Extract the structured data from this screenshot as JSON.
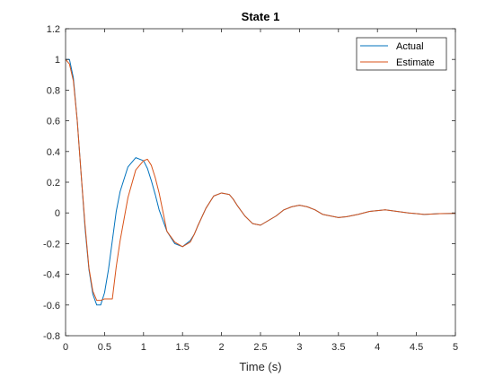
{
  "chart_data": {
    "type": "line",
    "title": "State 1",
    "xlabel": "Time (s)",
    "ylabel": "",
    "xlim": [
      0,
      5
    ],
    "ylim": [
      -0.8,
      1.2
    ],
    "xticks": [
      0,
      0.5,
      1,
      1.5,
      2,
      2.5,
      3,
      3.5,
      4,
      4.5,
      5
    ],
    "xtick_labels": [
      "0",
      "0.5",
      "1",
      "1.5",
      "2",
      "2.5",
      "3",
      "3.5",
      "4",
      "4.5",
      "5"
    ],
    "yticks": [
      -0.8,
      -0.6,
      -0.4,
      -0.2,
      0,
      0.2,
      0.4,
      0.6,
      0.8,
      1,
      1.2
    ],
    "ytick_labels": [
      "-0.8",
      "-0.6",
      "-0.4",
      "-0.2",
      "0",
      "0.2",
      "0.4",
      "0.6",
      "0.8",
      "1",
      "1.2"
    ],
    "grid": false,
    "legend": "top-right",
    "series": [
      {
        "name": "Actual",
        "color": "#0072BD",
        "x": [
          0,
          0.05,
          0.1,
          0.15,
          0.2,
          0.25,
          0.3,
          0.35,
          0.4,
          0.45,
          0.5,
          0.55,
          0.6,
          0.65,
          0.7,
          0.8,
          0.9,
          1.0,
          1.05,
          1.1,
          1.15,
          1.2,
          1.3,
          1.4,
          1.5,
          1.6,
          1.65,
          1.7,
          1.8,
          1.9,
          2.0,
          2.1,
          2.15,
          2.2,
          2.3,
          2.4,
          2.5,
          2.6,
          2.7,
          2.8,
          2.9,
          3.0,
          3.1,
          3.2,
          3.3,
          3.4,
          3.5,
          3.6,
          3.75,
          3.9,
          4.0,
          4.1,
          4.25,
          4.4,
          4.5,
          4.6,
          4.8,
          5.0
        ],
        "y": [
          1.0,
          1.0,
          0.88,
          0.6,
          0.25,
          -0.1,
          -0.37,
          -0.53,
          -0.6,
          -0.6,
          -0.52,
          -0.37,
          -0.18,
          0.01,
          0.14,
          0.3,
          0.36,
          0.34,
          0.29,
          0.21,
          0.12,
          0.02,
          -0.12,
          -0.2,
          -0.22,
          -0.18,
          -0.14,
          -0.08,
          0.03,
          0.11,
          0.13,
          0.12,
          0.09,
          0.05,
          -0.02,
          -0.07,
          -0.08,
          -0.05,
          -0.02,
          0.02,
          0.04,
          0.05,
          0.04,
          0.02,
          -0.01,
          -0.02,
          -0.03,
          -0.025,
          -0.01,
          0.01,
          0.015,
          0.02,
          0.01,
          0.0,
          -0.005,
          -0.01,
          -0.005,
          -0.003
        ]
      },
      {
        "name": "Estimate",
        "color": "#D95319",
        "x": [
          0,
          0.05,
          0.1,
          0.15,
          0.2,
          0.25,
          0.3,
          0.35,
          0.4,
          0.45,
          0.5,
          0.6,
          0.65,
          0.7,
          0.8,
          0.9,
          1.0,
          1.05,
          1.1,
          1.15,
          1.2,
          1.3,
          1.4,
          1.5,
          1.6,
          1.65,
          1.7,
          1.8,
          1.9,
          2.0,
          2.1,
          2.15,
          2.2,
          2.3,
          2.4,
          2.5,
          2.6,
          2.7,
          2.8,
          2.9,
          3.0,
          3.1,
          3.2,
          3.3,
          3.4,
          3.5,
          3.6,
          3.75,
          3.9,
          4.0,
          4.1,
          4.25,
          4.4,
          4.5,
          4.6,
          4.8,
          5.0
        ],
        "y": [
          1.0,
          0.97,
          0.86,
          0.6,
          0.25,
          -0.08,
          -0.36,
          -0.51,
          -0.57,
          -0.57,
          -0.56,
          -0.56,
          -0.35,
          -0.18,
          0.1,
          0.28,
          0.34,
          0.35,
          0.31,
          0.23,
          0.13,
          -0.12,
          -0.19,
          -0.22,
          -0.19,
          -0.14,
          -0.08,
          0.03,
          0.11,
          0.13,
          0.12,
          0.09,
          0.05,
          -0.02,
          -0.07,
          -0.08,
          -0.05,
          -0.02,
          0.02,
          0.04,
          0.05,
          0.04,
          0.02,
          -0.01,
          -0.02,
          -0.03,
          -0.025,
          -0.01,
          0.01,
          0.015,
          0.02,
          0.01,
          0.0,
          -0.005,
          -0.01,
          -0.005,
          -0.003
        ]
      }
    ]
  }
}
